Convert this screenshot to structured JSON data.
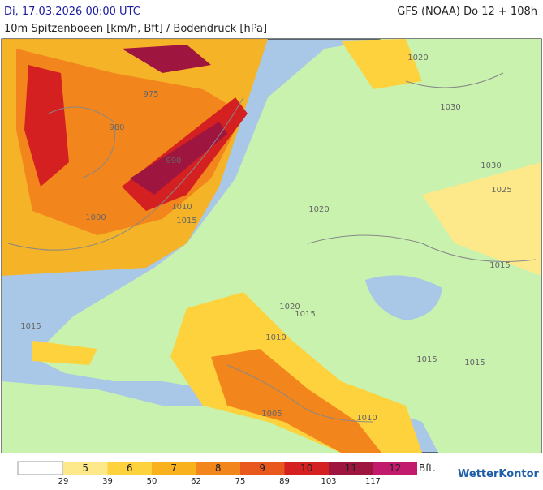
{
  "header": {
    "datetime": "Di, 17.03.2026 00:00 UTC",
    "model": "GFS (NOAA) Do 12 + 108h",
    "subtitle": "10m Spitzenboeen [km/h, Bft] / Bodendruck [hPa]"
  },
  "isobar_labels": [
    "1020",
    "1030",
    "1030",
    "1025",
    "1020",
    "1015",
    "1015",
    "1020",
    "1015",
    "1010",
    "1015",
    "1015",
    "1005",
    "1010",
    "975",
    "980",
    "990",
    "1000",
    "1015",
    "1010"
  ],
  "legend": {
    "classes": [
      {
        "bft": "5",
        "color": "#fde98a"
      },
      {
        "bft": "6",
        "color": "#fdd23c"
      },
      {
        "bft": "7",
        "color": "#f9b21e"
      },
      {
        "bft": "8",
        "color": "#f2861c"
      },
      {
        "bft": "9",
        "color": "#e9581c"
      },
      {
        "bft": "10",
        "color": "#d42020"
      },
      {
        "bft": "11",
        "color": "#9e1640"
      },
      {
        "bft": "12",
        "color": "#c21a6c"
      }
    ],
    "unit": "Bft.",
    "thresholds": [
      29,
      39,
      50,
      62,
      75,
      89,
      103,
      117
    ]
  },
  "logo": "WetterKontor"
}
